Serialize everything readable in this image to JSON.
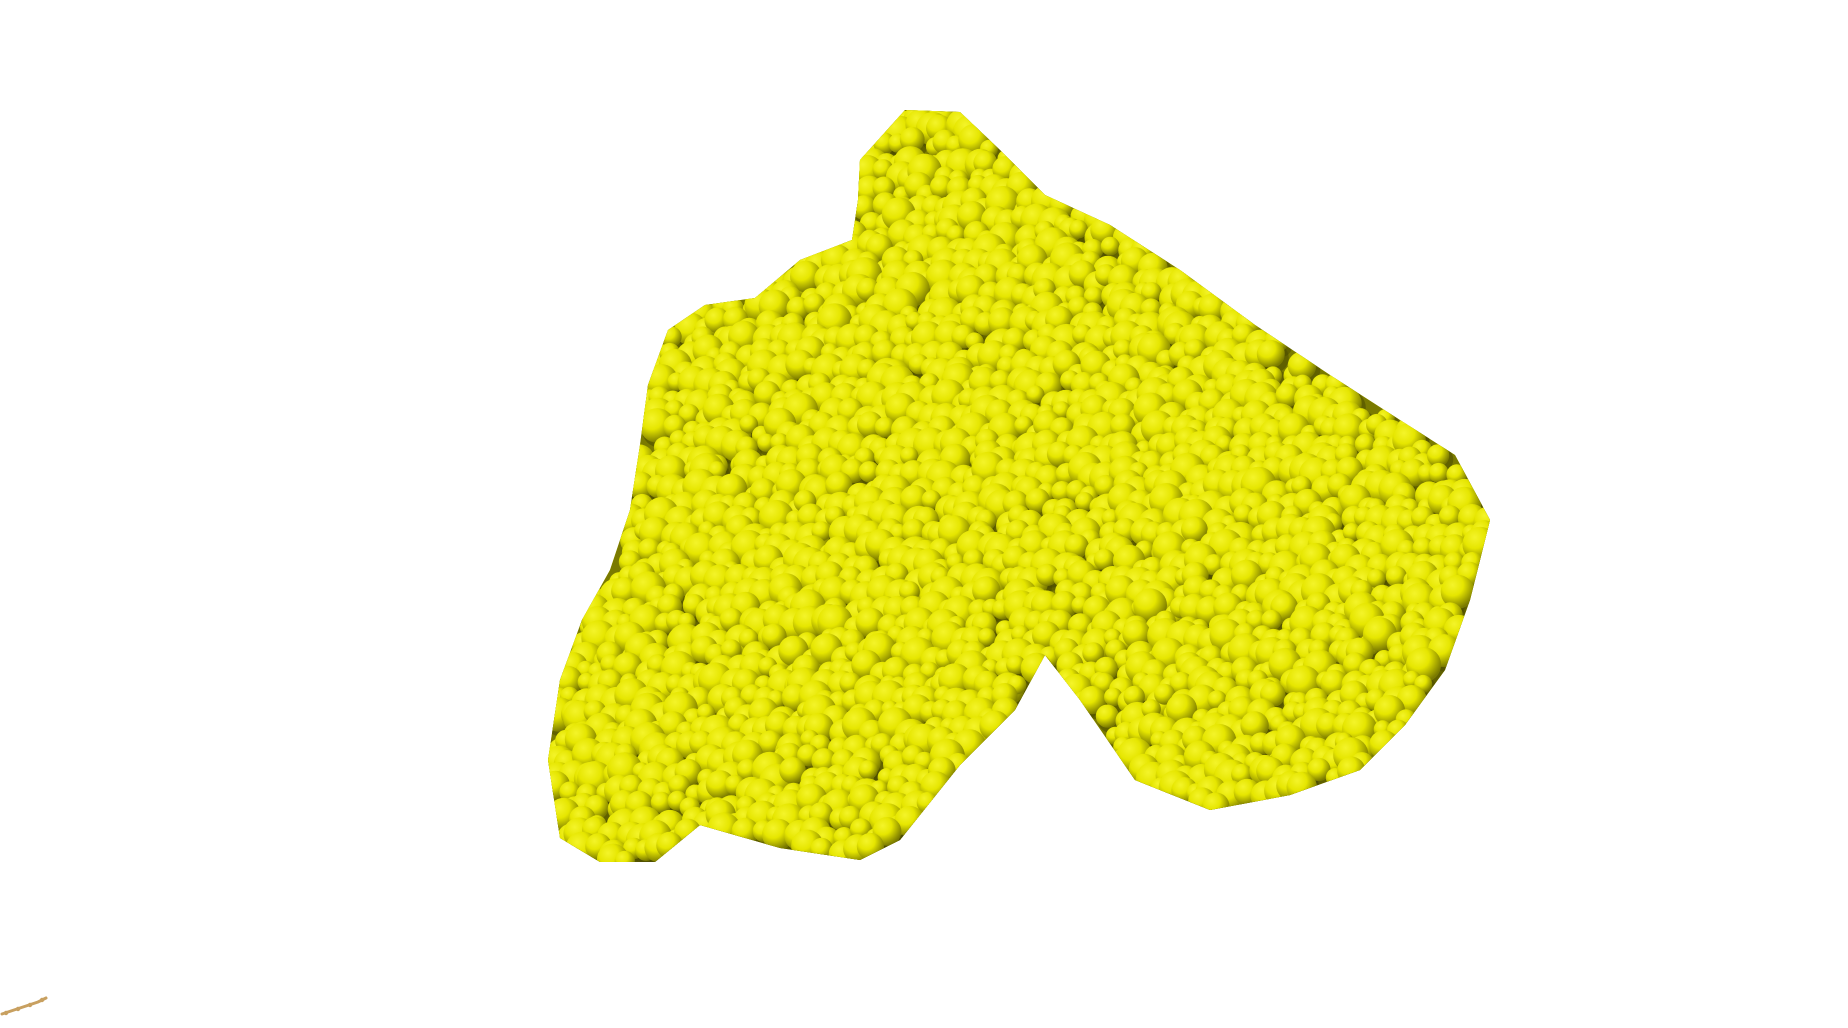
{
  "scene": {
    "background": "#ffffff",
    "surface": {
      "name": "density-map-surface",
      "color": "#e6e600",
      "highlight": "#f4f42a",
      "shadow": "#7a7a00",
      "deep_shadow": "#4a4a00"
    },
    "marker": {
      "name": "small-model-marker",
      "color": "#c8a060"
    }
  }
}
